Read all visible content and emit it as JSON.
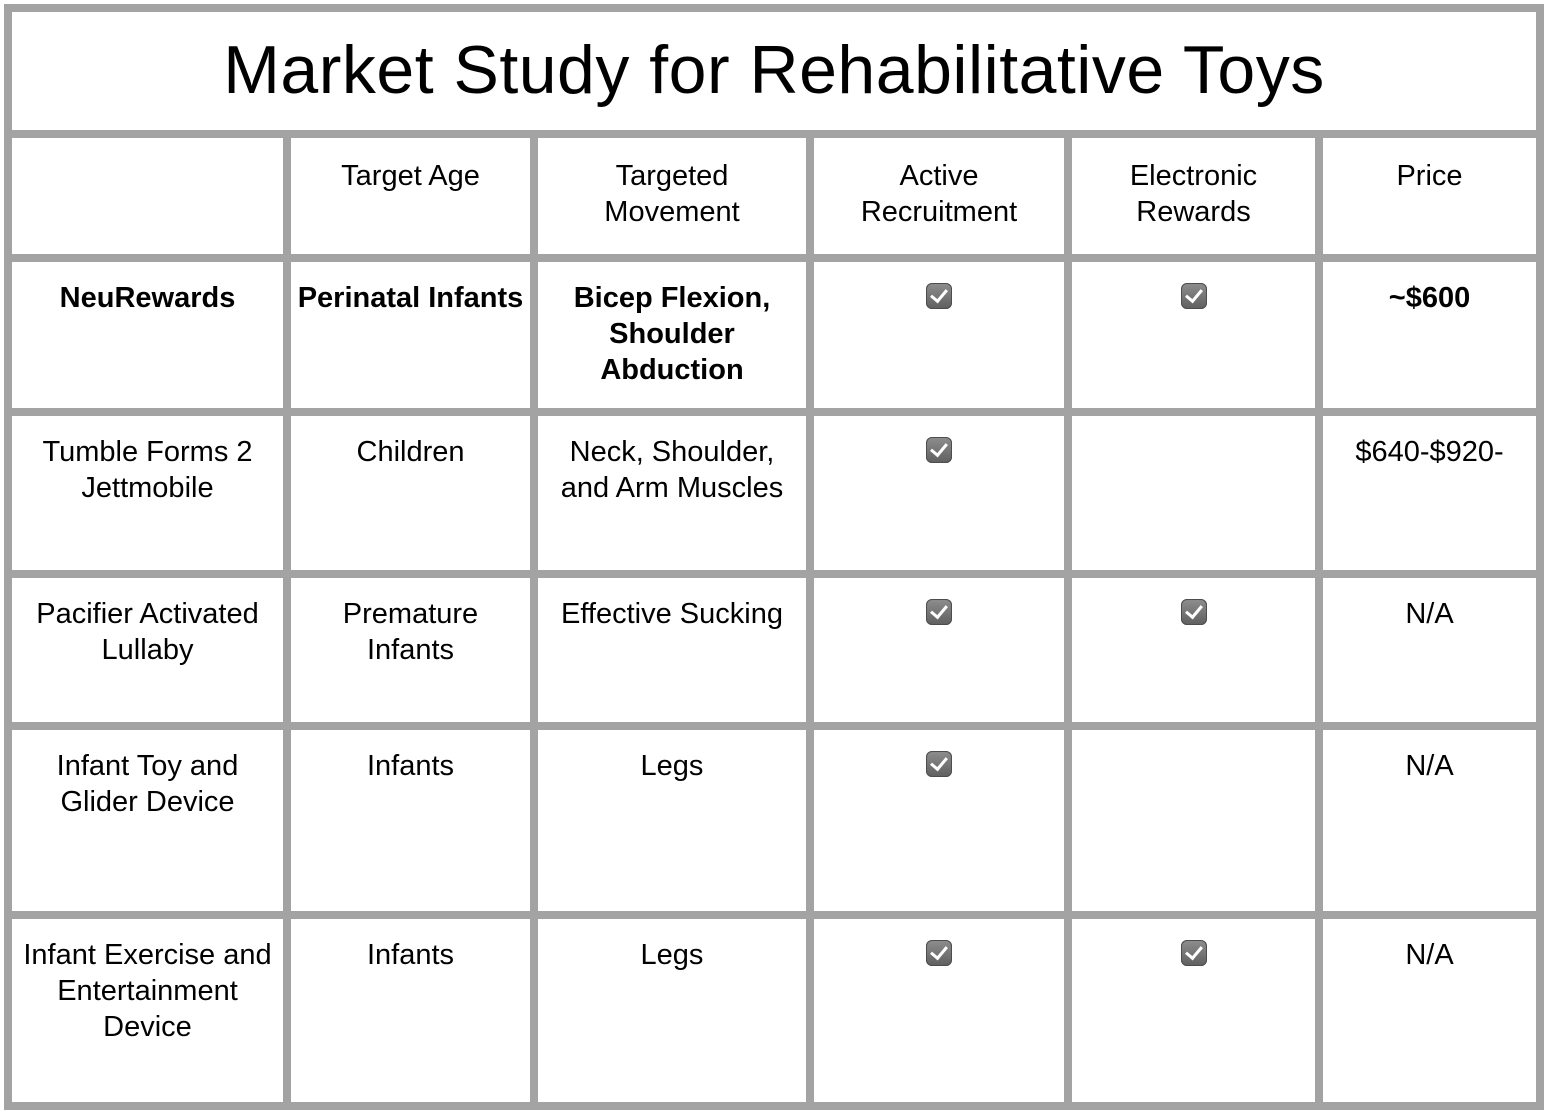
{
  "title": "Market Study for Rehabilitative Toys",
  "columns": [
    "",
    "Target Age",
    "Targeted Movement",
    "Active Recruitment",
    "Electronic Rewards",
    "Price"
  ],
  "rows": [
    {
      "name": "NeuRewards",
      "age": "Perinatal Infants",
      "movement": "Bicep Flexion, Shoulder Abduction",
      "active": true,
      "electronic": true,
      "price": "~$600",
      "bold": true
    },
    {
      "name": "Tumble Forms 2 Jettmobile",
      "age": "Children",
      "movement": "Neck, Shoulder, and Arm Muscles",
      "active": true,
      "electronic": false,
      "price": "$640-$920-",
      "bold": false
    },
    {
      "name": "Pacifier Activated Lullaby",
      "age": "Premature Infants",
      "movement": "Effective Sucking",
      "active": true,
      "electronic": true,
      "price": "N/A",
      "bold": false
    },
    {
      "name": "Infant Toy and Glider Device",
      "age": "Infants",
      "movement": "Legs",
      "active": true,
      "electronic": false,
      "price": "N/A",
      "bold": false
    },
    {
      "name": "Infant Exercise and Entertainment Device",
      "age": "Infants",
      "movement": "Legs",
      "active": true,
      "electronic": true,
      "price": "N/A",
      "bold": false
    }
  ],
  "icons": {
    "checkbox": "checked-checkbox-icon"
  },
  "colors": {
    "grid": "#a3a3a3",
    "checkbox": "#6e6e6e"
  }
}
